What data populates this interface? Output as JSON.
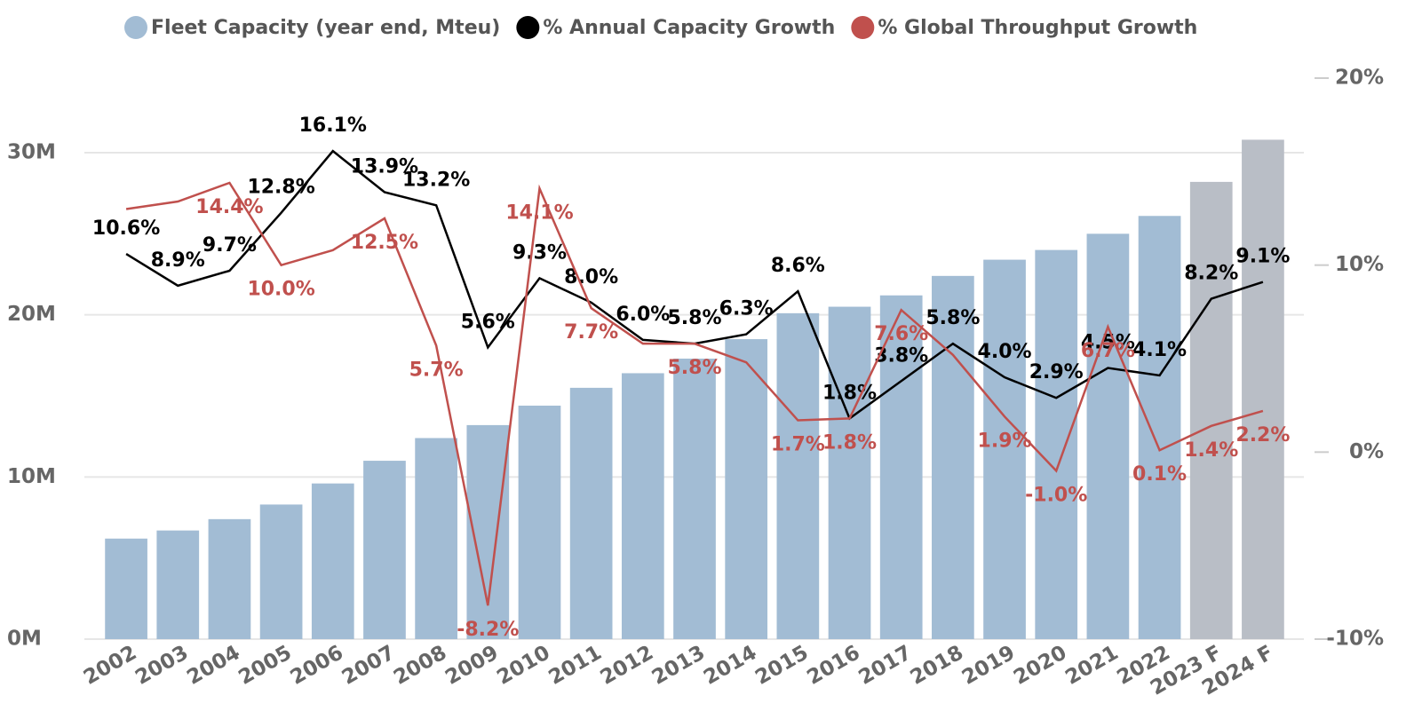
{
  "chart_data": {
    "type": "bar-line",
    "categories": [
      "2002",
      "2003",
      "2004",
      "2005",
      "2006",
      "2007",
      "2008",
      "2009",
      "2010",
      "2011",
      "2012",
      "2013",
      "2014",
      "2015",
      "2016",
      "2017",
      "2018",
      "2019",
      "2020",
      "2021",
      "2022",
      "2023 F",
      "2024 F"
    ],
    "ylim": [
      0,
      34.6
    ],
    "yticks": [
      {
        "value": 0,
        "label": "0M"
      },
      {
        "value": 10,
        "label": "10M"
      },
      {
        "value": 20,
        "label": "20M"
      },
      {
        "value": 30,
        "label": "30M"
      }
    ],
    "y2lim": [
      -10,
      20
    ],
    "y2ticks": [
      {
        "value": -10,
        "label": "-10%"
      },
      {
        "value": 0,
        "label": "0%"
      },
      {
        "value": 10,
        "label": "10%"
      },
      {
        "value": 20,
        "label": "20%"
      }
    ],
    "grid": true,
    "legend": "top",
    "series": [
      {
        "name": "Fleet Capacity (year end, Mteu)",
        "type": "bar",
        "color": "#a2bcd4",
        "colors": [
          "#a2bcd4",
          "#a2bcd4",
          "#a2bcd4",
          "#a2bcd4",
          "#a2bcd4",
          "#a2bcd4",
          "#a2bcd4",
          "#a2bcd4",
          "#a2bcd4",
          "#a2bcd4",
          "#a2bcd4",
          "#a2bcd4",
          "#a2bcd4",
          "#a2bcd4",
          "#a2bcd4",
          "#a2bcd4",
          "#a2bcd4",
          "#a2bcd4",
          "#a2bcd4",
          "#a2bcd4",
          "#a2bcd4",
          "#b9bec6",
          "#b9bec6"
        ],
        "values": [
          6.2,
          6.7,
          7.4,
          8.3,
          9.6,
          11.0,
          12.4,
          13.2,
          14.4,
          15.5,
          16.4,
          17.3,
          18.5,
          20.1,
          20.5,
          21.2,
          22.4,
          23.4,
          24.0,
          25.0,
          26.1,
          28.2,
          30.8
        ]
      },
      {
        "name": "% Annual Capacity Growth",
        "type": "line",
        "axis": "y2",
        "color": "#000000",
        "values": [
          10.6,
          8.9,
          9.7,
          12.8,
          16.1,
          13.9,
          13.2,
          5.6,
          9.3,
          8.0,
          6.0,
          5.8,
          6.3,
          8.6,
          1.8,
          3.8,
          5.8,
          4.0,
          2.9,
          4.5,
          4.1,
          8.2,
          9.1
        ],
        "value_labels": [
          "10.6%",
          "8.9%",
          "9.7%",
          "12.8%",
          "16.1%",
          "13.9%",
          "13.2%",
          "5.6%",
          "9.3%",
          "8.0%",
          "6.0%",
          "5.8%",
          "6.3%",
          "8.6%",
          "1.8%",
          "3.8%",
          "5.8%",
          "4.0%",
          "2.9%",
          "4.5%",
          "4.1%",
          "8.2%",
          "9.1%"
        ]
      },
      {
        "name": "% Global Throughput Growth",
        "type": "line",
        "axis": "y2",
        "color": "#c0504d",
        "values": [
          13.0,
          13.4,
          14.4,
          10.0,
          10.8,
          12.5,
          5.7,
          -8.2,
          14.1,
          7.7,
          5.8,
          5.8,
          4.8,
          1.7,
          1.8,
          7.6,
          5.2,
          1.9,
          -1.0,
          6.7,
          0.1,
          1.4,
          2.2
        ],
        "value_labels": [
          null,
          null,
          "14.4%",
          "10.0%",
          null,
          "12.5%",
          "5.7%",
          "-8.2%",
          "14.1%",
          "7.7%",
          null,
          "5.8%",
          null,
          "1.7%",
          "1.8%",
          "7.6%",
          null,
          "1.9%",
          "-1.0%",
          "6.7%",
          "0.1%",
          "1.4%",
          "2.2%"
        ]
      }
    ]
  }
}
